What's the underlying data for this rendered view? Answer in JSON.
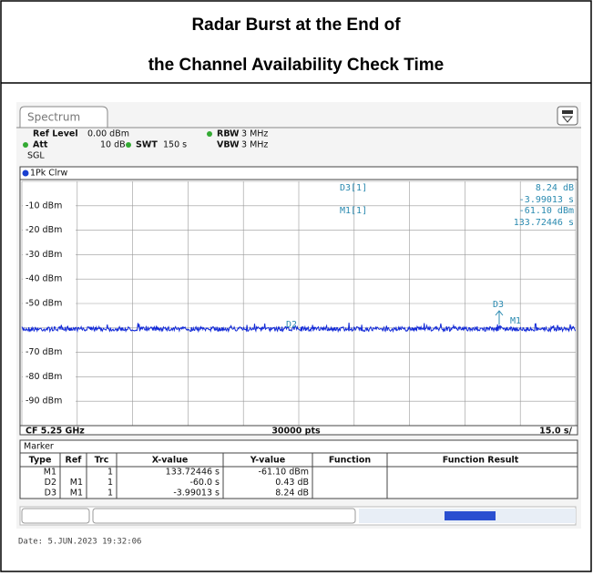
{
  "header": {
    "title_lines": [
      "Radar Burst at the End of",
      "the Channel Availability Check Time"
    ]
  },
  "window": {
    "tab": "Spectrum",
    "settings": {
      "ref_level_label": "Ref Level",
      "ref_level": "0.00 dBm",
      "att_label": "Att",
      "att": "10 dB",
      "swt_label": "SWT",
      "swt": "150 s",
      "rbw_label": "RBW",
      "rbw": "3 MHz",
      "vbw_label": "VBW",
      "vbw": "3 MHz",
      "mode": "SGL",
      "trace_mode": "1Pk Clrw"
    },
    "plot": {
      "y_labels": [
        "-10 dBm",
        "-20 dBm",
        "-30 dBm",
        "-40 dBm",
        "-50 dBm",
        "-70 dBm",
        "-80 dBm",
        "-90 dBm"
      ],
      "marker_info": [
        {
          "label": "D3[1]",
          "lines": [
            "8.24 dB",
            "-3.99013 s"
          ]
        },
        {
          "label": "M1[1]",
          "lines": [
            "-61.10 dBm",
            "133.72446 s"
          ]
        }
      ],
      "marker_flags": [
        "D3",
        "M1",
        "D2"
      ],
      "footer": {
        "cf": "CF 5.25 GHz",
        "points": "30000 pts",
        "span": "15.0 s/"
      }
    },
    "marker_table": {
      "title": "Marker",
      "columns": [
        "Type",
        "Ref",
        "Trc",
        "X-value",
        "Y-value",
        "Function",
        "Function Result"
      ],
      "rows": [
        {
          "type": "M1",
          "trc": "1",
          "x": "133.72446 s",
          "y": "-61.10 dBm"
        },
        {
          "type": "D2",
          "ref": "M1",
          "trc": "1",
          "x": "-60.0 s",
          "y": "0.43 dB"
        },
        {
          "type": "D3",
          "ref": "M1",
          "trc": "1",
          "x": "-3.99013 s",
          "y": "8.24 dB"
        }
      ]
    },
    "date": "Date: 5.JUN.2023  19:32:06"
  }
}
